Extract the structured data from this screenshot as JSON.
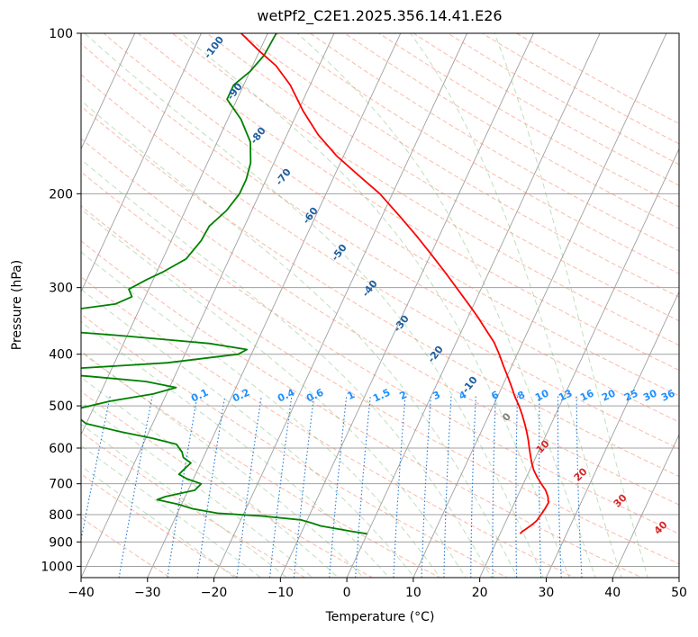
{
  "chart_data": {
    "type": "skew-t",
    "title": "wetPf2_C2E1.2025.356.14.41.E26",
    "xlabel": "Temperature (°C)",
    "ylabel": "Pressure (hPa)",
    "xlim": [
      -40,
      50
    ],
    "ylim": [
      1050,
      100
    ],
    "x_ticks": [
      -40,
      -30,
      -20,
      -10,
      0,
      10,
      20,
      30,
      40,
      50
    ],
    "y_ticks": [
      1000,
      900,
      800,
      700,
      600,
      500,
      400,
      300,
      200,
      100
    ],
    "temperature": {
      "color": "#ff0000",
      "points": [
        [
          869,
          23.0
        ],
        [
          860,
          23.2
        ],
        [
          850,
          23.6
        ],
        [
          835,
          24.2
        ],
        [
          820,
          24.6
        ],
        [
          800,
          24.8
        ],
        [
          780,
          25.0
        ],
        [
          760,
          25.1
        ],
        [
          740,
          24.6
        ],
        [
          720,
          23.8
        ],
        [
          700,
          22.7
        ],
        [
          680,
          21.6
        ],
        [
          660,
          20.6
        ],
        [
          640,
          19.8
        ],
        [
          620,
          19.1
        ],
        [
          600,
          18.4
        ],
        [
          580,
          17.7
        ],
        [
          560,
          16.9
        ],
        [
          540,
          16.0
        ],
        [
          520,
          15.0
        ],
        [
          500,
          13.9
        ],
        [
          480,
          12.6
        ],
        [
          460,
          11.4
        ],
        [
          440,
          10.1
        ],
        [
          420,
          8.7
        ],
        [
          400,
          7.3
        ],
        [
          380,
          5.7
        ],
        [
          360,
          3.6
        ],
        [
          340,
          1.4
        ],
        [
          320,
          -1.1
        ],
        [
          300,
          -3.8
        ],
        [
          280,
          -6.7
        ],
        [
          260,
          -9.9
        ],
        [
          240,
          -13.4
        ],
        [
          220,
          -17.4
        ],
        [
          200,
          -21.9
        ],
        [
          185,
          -26.3
        ],
        [
          170,
          -31.0
        ],
        [
          155,
          -35.3
        ],
        [
          140,
          -39.2
        ],
        [
          125,
          -43.0
        ],
        [
          115,
          -46.5
        ],
        [
          108,
          -50.0
        ],
        [
          100,
          -54.0
        ]
      ]
    },
    "dewpoint": {
      "color": "#008000",
      "points": [
        [
          869,
          0.0
        ],
        [
          860,
          -2.5
        ],
        [
          850,
          -5.0
        ],
        [
          840,
          -7.5
        ],
        [
          830,
          -9.0
        ],
        [
          818,
          -11.0
        ],
        [
          805,
          -17.0
        ],
        [
          795,
          -24.0
        ],
        [
          780,
          -28.0
        ],
        [
          765,
          -30.5
        ],
        [
          750,
          -34.0
        ],
        [
          740,
          -33.0
        ],
        [
          720,
          -29.0
        ],
        [
          700,
          -28.5
        ],
        [
          685,
          -31.0
        ],
        [
          672,
          -32.5
        ],
        [
          655,
          -32.0
        ],
        [
          640,
          -31.5
        ],
        [
          625,
          -33.0
        ],
        [
          610,
          -33.6
        ],
        [
          590,
          -35.0
        ],
        [
          575,
          -39.0
        ],
        [
          560,
          -44.0
        ],
        [
          540,
          -50.0
        ],
        [
          520,
          -52.3
        ],
        [
          505,
          -52.0
        ],
        [
          490,
          -48.0
        ],
        [
          475,
          -42.0
        ],
        [
          462,
          -39.0
        ],
        [
          450,
          -44.0
        ],
        [
          440,
          -53.0
        ],
        [
          432,
          -61.5
        ],
        [
          425,
          -55.0
        ],
        [
          415,
          -42.0
        ],
        [
          400,
          -32.0
        ],
        [
          392,
          -31.0
        ],
        [
          382,
          -37.0
        ],
        [
          370,
          -50.0
        ],
        [
          362,
          -60.0
        ],
        [
          352,
          -64.5
        ],
        [
          345,
          -65.5
        ],
        [
          338,
          -66.0
        ],
        [
          330,
          -60.0
        ],
        [
          322,
          -54.0
        ],
        [
          312,
          -52.0
        ],
        [
          302,
          -53.0
        ],
        [
          290,
          -51.0
        ],
        [
          280,
          -49.0
        ],
        [
          265,
          -46.5
        ],
        [
          245,
          -45.5
        ],
        [
          230,
          -45.3
        ],
        [
          215,
          -43.8
        ],
        [
          200,
          -43.0
        ],
        [
          188,
          -43.0
        ],
        [
          175,
          -43.5
        ],
        [
          160,
          -45.0
        ],
        [
          145,
          -48.0
        ],
        [
          133,
          -51.5
        ],
        [
          125,
          -51.5
        ],
        [
          118,
          -50.0
        ],
        [
          110,
          -49.0
        ],
        [
          100,
          -48.7
        ]
      ]
    },
    "isotherm_label": "0",
    "dry_adiabat_labels": [
      "-100",
      "-90",
      "-80",
      "-70",
      "-60",
      "-50",
      "-40",
      "-30",
      "-20",
      "-10"
    ],
    "mixing_ratio_labels": [
      "0.1",
      "0.2",
      "0.4",
      "0.6",
      "1",
      "1.5",
      "2",
      "3",
      "4",
      "6",
      "8",
      "10",
      "13",
      "16",
      "20",
      "25",
      "30",
      "36"
    ],
    "moist_adiabat_labels": [
      "10",
      "20",
      "30",
      "40"
    ],
    "colors": {
      "temperature": "#ff0000",
      "dewpoint": "#008000",
      "isotherms": "#a0a0a0",
      "dry_adiabats": "#fa8060",
      "moist_adiabats": "#70b870",
      "mixing_ratio": "#1f77d4",
      "dry_label": "#1f5f9f",
      "moist_label": "#d62728",
      "mixing_label": "#1e90ff",
      "zero_label": "#808080"
    }
  }
}
